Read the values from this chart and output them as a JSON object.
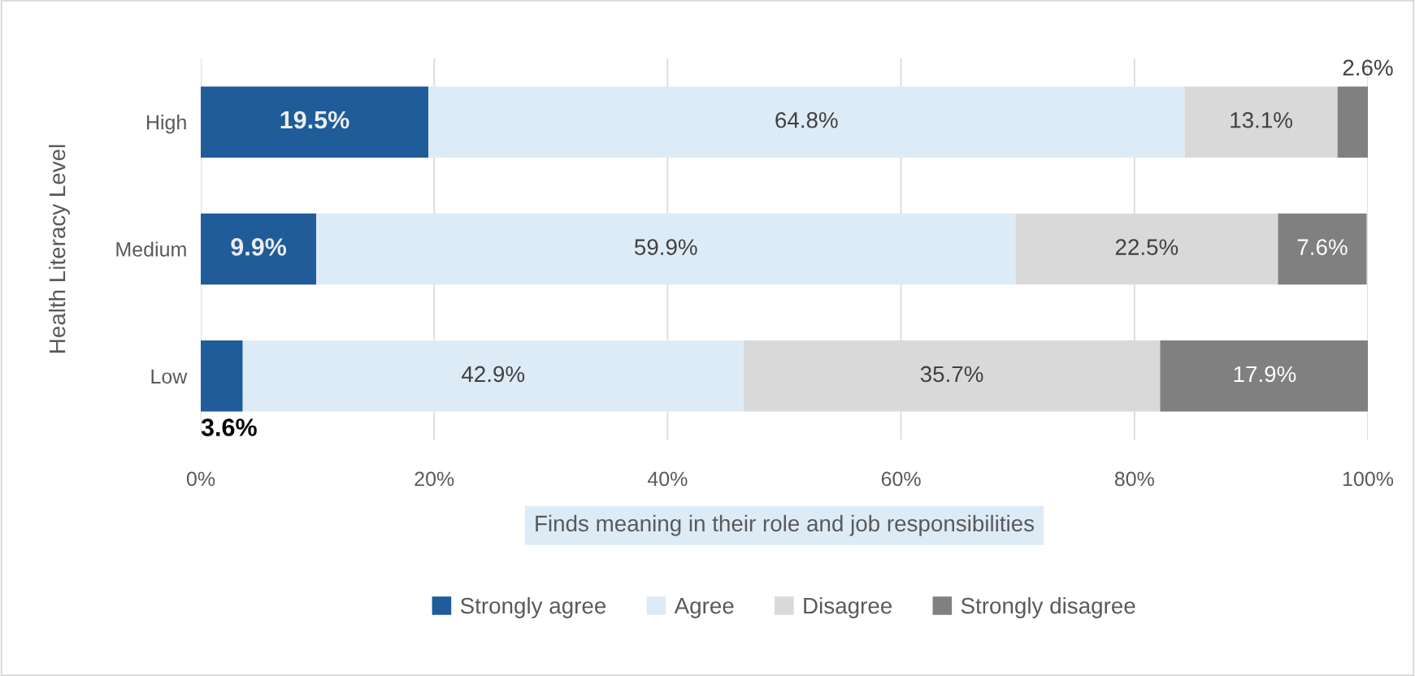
{
  "chart_data": {
    "type": "bar",
    "orientation": "horizontal",
    "stacked": true,
    "xlabel": "Finds meaning in their role and job responsibilities",
    "ylabel": "Health Literacy Level",
    "categories": [
      "High",
      "Medium",
      "Low"
    ],
    "series": [
      {
        "name": "Strongly agree",
        "color": "#1f5c99",
        "values": [
          19.5,
          9.9,
          3.6
        ],
        "value_labels": [
          "19.5%",
          "9.9%",
          "3.6%"
        ]
      },
      {
        "name": "Agree",
        "color": "#ddebf7",
        "values": [
          64.8,
          59.9,
          42.9
        ],
        "value_labels": [
          "64.8%",
          "59.9%",
          "42.9%"
        ]
      },
      {
        "name": "Disagree",
        "color": "#d9d9d9",
        "values": [
          13.1,
          22.5,
          35.7
        ],
        "value_labels": [
          "13.1%",
          "22.5%",
          "35.7%"
        ]
      },
      {
        "name": "Strongly disagree",
        "color": "#808080",
        "values": [
          2.6,
          7.6,
          17.9
        ],
        "value_labels": [
          "2.6%",
          "7.6%",
          "17.9%"
        ]
      }
    ],
    "xlim": [
      0,
      100
    ],
    "xticks": [
      {
        "value": 0,
        "label": "0%"
      },
      {
        "value": 20,
        "label": "20%"
      },
      {
        "value": 40,
        "label": "40%"
      },
      {
        "value": 60,
        "label": "60%"
      },
      {
        "value": 80,
        "label": "80%"
      },
      {
        "value": 100,
        "label": "100%"
      }
    ],
    "grid": "x",
    "legend": "bottom"
  }
}
